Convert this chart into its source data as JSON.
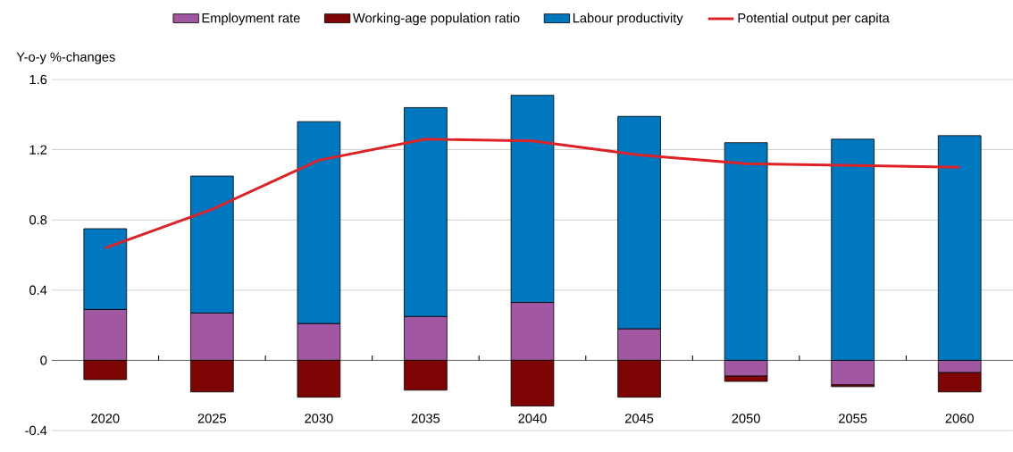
{
  "chart_data": {
    "type": "bar",
    "stacked": true,
    "ylabel": "Y-o-y %-changes",
    "categories": [
      "2020",
      "2025",
      "2030",
      "2035",
      "2040",
      "2045",
      "2050",
      "2055",
      "2060"
    ],
    "series": [
      {
        "name": "Employment rate",
        "color": "#a157a1",
        "values": [
          0.29,
          0.27,
          0.21,
          0.25,
          0.33,
          0.18,
          -0.09,
          -0.14,
          -0.07
        ]
      },
      {
        "name": "Working-age population ratio",
        "color": "#7f0505",
        "values": [
          -0.11,
          -0.18,
          -0.21,
          -0.17,
          -0.26,
          -0.21,
          -0.03,
          -0.01,
          -0.11
        ]
      },
      {
        "name": "Labour productivity",
        "color": "#0078bf",
        "values": [
          0.46,
          0.78,
          1.15,
          1.19,
          1.18,
          1.21,
          1.24,
          1.26,
          1.28
        ]
      },
      {
        "name": "Potential output per capita",
        "type": "line",
        "color": "#dc2127",
        "values": [
          0.64,
          0.86,
          1.14,
          1.26,
          1.25,
          1.17,
          1.12,
          1.11,
          1.1
        ]
      }
    ],
    "ylim": [
      -0.4,
      1.6
    ],
    "yticks": [
      -0.4,
      0,
      0.4,
      0.8,
      1.2,
      1.6
    ],
    "grid": "y",
    "legend": "top"
  }
}
